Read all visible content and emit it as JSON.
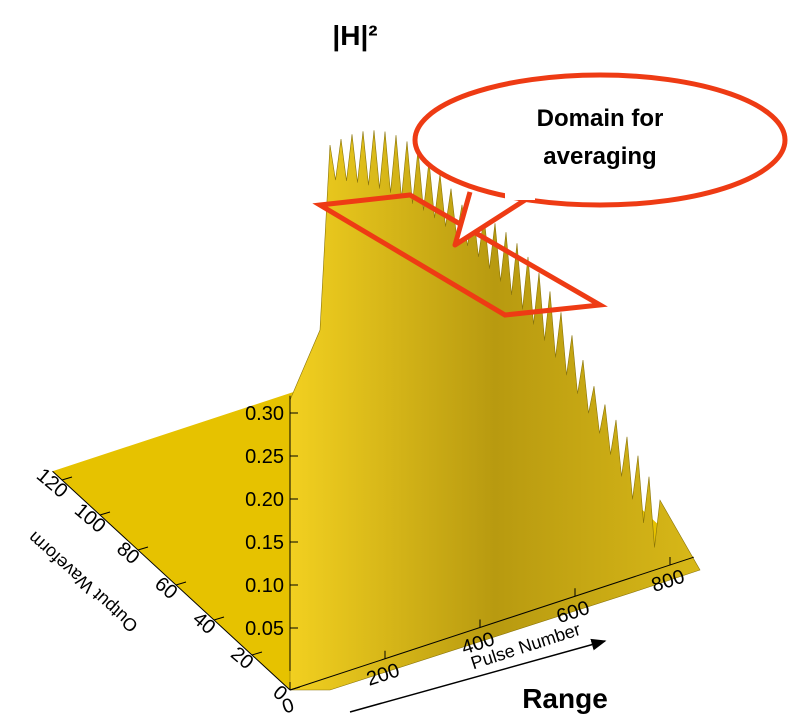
{
  "chart_data": {
    "type": "surface3d",
    "title": "|H|²",
    "xlabel": "Pulse Number",
    "ylabel": "Output Waveform",
    "xlim": [
      0,
      850
    ],
    "xticks": [
      0,
      200,
      400,
      600,
      800
    ],
    "ylim": [
      0,
      125
    ],
    "yticks": [
      0,
      20,
      40,
      60,
      80,
      100,
      120
    ],
    "zlim": [
      0,
      0.32
    ],
    "zticks": [
      0.05,
      0.1,
      0.15,
      0.2,
      0.25,
      0.3
    ],
    "zticklabels": [
      {
        "value": 0.05,
        "label": "0.05"
      },
      {
        "value": 0.1,
        "label": "0.10"
      },
      {
        "value": 0.15,
        "label": "0.15"
      },
      {
        "value": 0.2,
        "label": "0.20"
      },
      {
        "value": 0.25,
        "label": "0.25"
      },
      {
        "value": 0.3,
        "label": "0.30"
      }
    ],
    "callout": [
      "Domain for",
      "averaging"
    ],
    "arrow_label": "Range",
    "surface_color": "#e6c200",
    "callout_color": "#ee3b14"
  }
}
